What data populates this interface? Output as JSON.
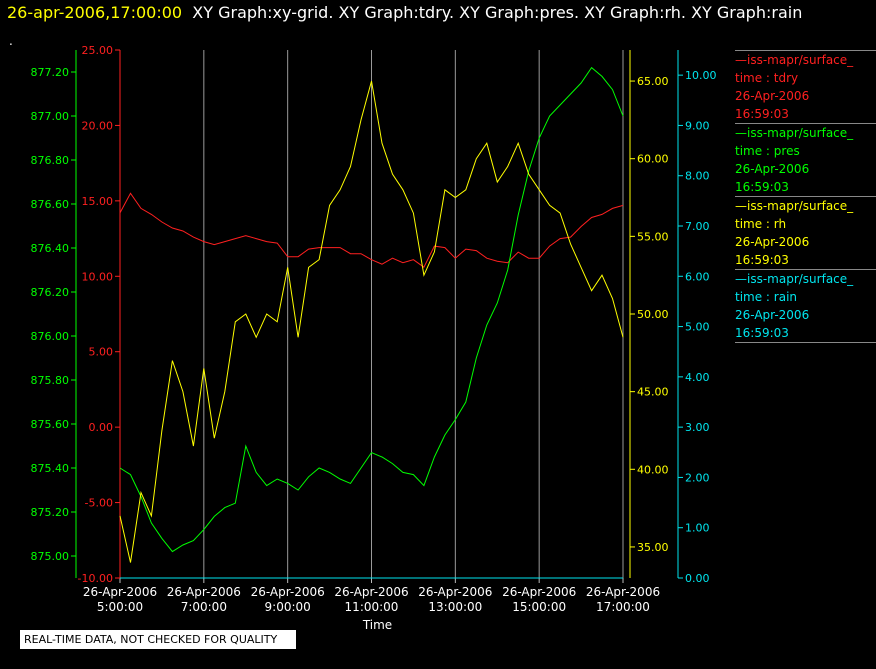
{
  "header": {
    "timestamp": "26-apr-2006,17:00:00",
    "graphs": "XY Graph:xy-grid.  XY Graph:tdry.  XY Graph:pres.  XY Graph:rh.  XY Graph:rain",
    "dot": "."
  },
  "footer_note": "REAL-TIME DATA, NOT CHECKED FOR QUALITY",
  "legend": [
    {
      "name": "—iss-mapr/surface_",
      "line2": "time : tdry",
      "line3": "26-Apr-2006",
      "line4": "16:59:03",
      "color": "#ff2020"
    },
    {
      "name": "—iss-mapr/surface_",
      "line2": "time : pres",
      "line3": "26-Apr-2006",
      "line4": "16:59:03",
      "color": "#00ff00"
    },
    {
      "name": "—iss-mapr/surface_",
      "line2": "time : rh",
      "line3": "26-Apr-2006",
      "line4": "16:59:03",
      "color": "#ffff00"
    },
    {
      "name": "—iss-mapr/surface_",
      "line2": "time : rain",
      "line3": "26-Apr-2006",
      "line4": "16:59:03",
      "color": "#00e5ee"
    }
  ],
  "chart_data": {
    "type": "line",
    "xlabel": "Time",
    "x_ticks": [
      {
        "date": "26-Apr-2006",
        "time": "5:00:00"
      },
      {
        "date": "26-Apr-2006",
        "time": "7:00:00"
      },
      {
        "date": "26-Apr-2006",
        "time": "9:00:00"
      },
      {
        "date": "26-Apr-2006",
        "time": "11:00:00"
      },
      {
        "date": "26-Apr-2006",
        "time": "13:00:00"
      },
      {
        "date": "26-Apr-2006",
        "time": "15:00:00"
      },
      {
        "date": "26-Apr-2006",
        "time": "17:00:00"
      }
    ],
    "xlim_hours": [
      5,
      17
    ],
    "axes": {
      "tdry": {
        "color": "#ff2020",
        "ylim": [
          -10,
          25
        ],
        "ticks": [
          "-10.00",
          "-5.00",
          "0.00",
          "5.00",
          "10.00",
          "15.00",
          "20.00",
          "25.00"
        ]
      },
      "pres": {
        "color": "#00ff00",
        "ylim": [
          874.9,
          877.3
        ],
        "ticks": [
          "875.00",
          "875.20",
          "875.40",
          "875.60",
          "875.80",
          "876.00",
          "876.20",
          "876.40",
          "876.60",
          "876.80",
          "877.00",
          "877.20"
        ]
      },
      "rh": {
        "color": "#ffff00",
        "ylim": [
          33,
          67
        ],
        "ticks": [
          "35.00",
          "40.00",
          "45.00",
          "50.00",
          "55.00",
          "60.00",
          "65.00"
        ]
      },
      "rain": {
        "color": "#00e5ee",
        "ylim": [
          0,
          10.5
        ],
        "ticks": [
          "0.00",
          "1.00",
          "2.00",
          "3.00",
          "4.00",
          "5.00",
          "6.00",
          "7.00",
          "8.00",
          "9.00",
          "10.00"
        ]
      }
    },
    "series": [
      {
        "name": "tdry",
        "axis": "tdry",
        "x": [
          5.0,
          5.25,
          5.5,
          5.75,
          6.0,
          6.25,
          6.5,
          6.75,
          7.0,
          7.25,
          7.5,
          7.75,
          8.0,
          8.25,
          8.5,
          8.75,
          9.0,
          9.25,
          9.5,
          9.75,
          10.0,
          10.25,
          10.5,
          10.75,
          11.0,
          11.25,
          11.5,
          11.75,
          12.0,
          12.25,
          12.5,
          12.75,
          13.0,
          13.25,
          13.5,
          13.75,
          14.0,
          14.25,
          14.5,
          14.75,
          15.0,
          15.25,
          15.5,
          15.75,
          16.0,
          16.25,
          16.5,
          16.75,
          17.0
        ],
        "y": [
          14.2,
          15.5,
          14.5,
          14.1,
          13.6,
          13.2,
          13.0,
          12.6,
          12.3,
          12.1,
          12.3,
          12.5,
          12.7,
          12.5,
          12.3,
          12.2,
          11.3,
          11.3,
          11.8,
          11.9,
          11.9,
          11.9,
          11.5,
          11.5,
          11.1,
          10.8,
          11.2,
          10.9,
          11.1,
          10.6,
          12.0,
          11.9,
          11.2,
          11.8,
          11.7,
          11.2,
          11.0,
          10.9,
          11.6,
          11.2,
          11.2,
          12.0,
          12.5,
          12.6,
          13.3,
          13.9,
          14.1,
          14.5,
          14.7
        ]
      },
      {
        "name": "pres",
        "axis": "pres",
        "x": [
          5.0,
          5.25,
          5.5,
          5.75,
          6.0,
          6.25,
          6.5,
          6.75,
          7.0,
          7.25,
          7.5,
          7.75,
          8.0,
          8.25,
          8.5,
          8.75,
          9.0,
          9.25,
          9.5,
          9.75,
          10.0,
          10.25,
          10.5,
          10.75,
          11.0,
          11.25,
          11.5,
          11.75,
          12.0,
          12.25,
          12.5,
          12.75,
          13.0,
          13.25,
          13.5,
          13.75,
          14.0,
          14.25,
          14.5,
          14.75,
          15.0,
          15.25,
          15.5,
          15.75,
          16.0,
          16.25,
          16.5,
          16.75,
          17.0
        ],
        "y": [
          875.4,
          875.37,
          875.27,
          875.15,
          875.08,
          875.02,
          875.05,
          875.07,
          875.12,
          875.18,
          875.22,
          875.24,
          875.5,
          875.38,
          875.32,
          875.35,
          875.33,
          875.3,
          875.36,
          875.4,
          875.38,
          875.35,
          875.33,
          875.4,
          875.47,
          875.45,
          875.42,
          875.38,
          875.37,
          875.32,
          875.45,
          875.55,
          875.62,
          875.7,
          875.9,
          876.05,
          876.15,
          876.3,
          876.55,
          876.75,
          876.9,
          877.0,
          877.05,
          877.1,
          877.15,
          877.22,
          877.18,
          877.12,
          877.0
        ]
      },
      {
        "name": "rh",
        "axis": "rh",
        "x": [
          5.0,
          5.25,
          5.5,
          5.75,
          6.0,
          6.25,
          6.5,
          6.75,
          7.0,
          7.25,
          7.5,
          7.75,
          8.0,
          8.25,
          8.5,
          8.75,
          9.0,
          9.25,
          9.5,
          9.75,
          10.0,
          10.25,
          10.5,
          10.75,
          11.0,
          11.25,
          11.5,
          11.75,
          12.0,
          12.25,
          12.5,
          12.75,
          13.0,
          13.25,
          13.5,
          13.75,
          14.0,
          14.25,
          14.5,
          14.75,
          15.0,
          15.25,
          15.5,
          15.75,
          16.0,
          16.25,
          16.5,
          16.75,
          17.0
        ],
        "y": [
          37.0,
          34.0,
          38.5,
          37.0,
          42.5,
          47.0,
          45.0,
          41.5,
          46.5,
          42.0,
          45.0,
          49.5,
          50.0,
          48.5,
          50.0,
          49.5,
          53.0,
          48.5,
          53.0,
          53.5,
          57.0,
          58.0,
          59.5,
          62.5,
          65.0,
          61.0,
          59.0,
          58.0,
          56.5,
          52.5,
          54.0,
          58.0,
          57.5,
          58.0,
          60.0,
          61.0,
          58.5,
          59.5,
          61.0,
          59.0,
          58.0,
          57.0,
          56.5,
          54.5,
          53.0,
          51.5,
          52.5,
          51.0,
          48.5
        ]
      },
      {
        "name": "rain",
        "axis": "rain",
        "x": [
          5.0,
          17.0
        ],
        "y": [
          0.0,
          0.0
        ]
      }
    ]
  }
}
